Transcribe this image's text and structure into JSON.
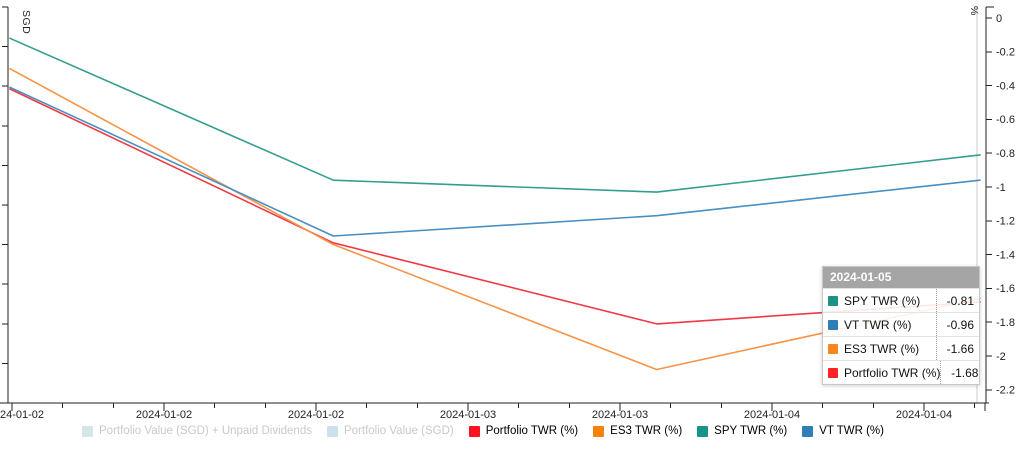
{
  "chart_data": {
    "type": "line",
    "x": [
      "2024-01-02",
      "2024-01-03",
      "2024-01-04",
      "2024-01-05"
    ],
    "series": [
      {
        "name": "Portfolio TWR (%)",
        "color": "#ef3a43",
        "values": [
          -0.42,
          -1.33,
          -1.81,
          -1.68
        ]
      },
      {
        "name": "ES3 TWR (%)",
        "color": "#f79447",
        "values": [
          -0.3,
          -1.34,
          -2.08,
          -1.66
        ]
      },
      {
        "name": "SPY TWR (%)",
        "color": "#339e90",
        "values": [
          -0.12,
          -0.96,
          -1.03,
          -0.81
        ]
      },
      {
        "name": "VT TWR (%)",
        "color": "#4a8fc2",
        "values": [
          -0.41,
          -1.29,
          -1.17,
          -0.96
        ]
      }
    ],
    "title": "",
    "xlabel": "",
    "ylabel_left": "SGD",
    "ylabel_right": "%",
    "right_axis_range": [
      0,
      -2.2
    ],
    "right_axis_ticks": [
      "0",
      "-0.2",
      "-0.4",
      "-0.6",
      "-0.8",
      "-1",
      "-1.2",
      "-1.4",
      "-1.6",
      "-1.8",
      "-2",
      "-2.2"
    ],
    "x_tick_labels": [
      "24-01-02",
      "2024-01-02",
      "2024-01-02",
      "2024-01-03",
      "2024-01-03",
      "2024-01-04",
      "2024-01-04"
    ],
    "grid": false,
    "legend_position": "bottom",
    "crosshair_date": "2024-01-05"
  },
  "tooltip": {
    "title": "2024-01-05",
    "rows": [
      {
        "label": "SPY TWR (%)",
        "value": "-0.81",
        "color": "#1b9187"
      },
      {
        "label": "VT TWR (%)",
        "value": "-0.96",
        "color": "#2e7eb5"
      },
      {
        "label": "ES3 TWR (%)",
        "value": "-1.66",
        "color": "#f6871f"
      },
      {
        "label": "Portfolio TWR (%)",
        "value": "-1.68",
        "color": "#fb2125"
      }
    ]
  },
  "legend": {
    "items": [
      {
        "label": "Portfolio Value (SGD) + Unpaid Dividends",
        "color": "#d6e5e8",
        "disabled": true
      },
      {
        "label": "Portfolio Value (SGD)",
        "color": "#cde0ed",
        "disabled": true
      },
      {
        "label": "Portfolio TWR (%)",
        "color": "#fa1420",
        "disabled": false
      },
      {
        "label": "ES3 TWR (%)",
        "color": "#f5820d",
        "disabled": false
      },
      {
        "label": "SPY TWR (%)",
        "color": "#17948a",
        "disabled": false
      },
      {
        "label": "VT TWR (%)",
        "color": "#2e7fb8",
        "disabled": false
      }
    ]
  },
  "colors": {
    "axis": "#222222",
    "crosshair": "#cccccc",
    "tooltip_header_bg": "#a5a5a5"
  }
}
